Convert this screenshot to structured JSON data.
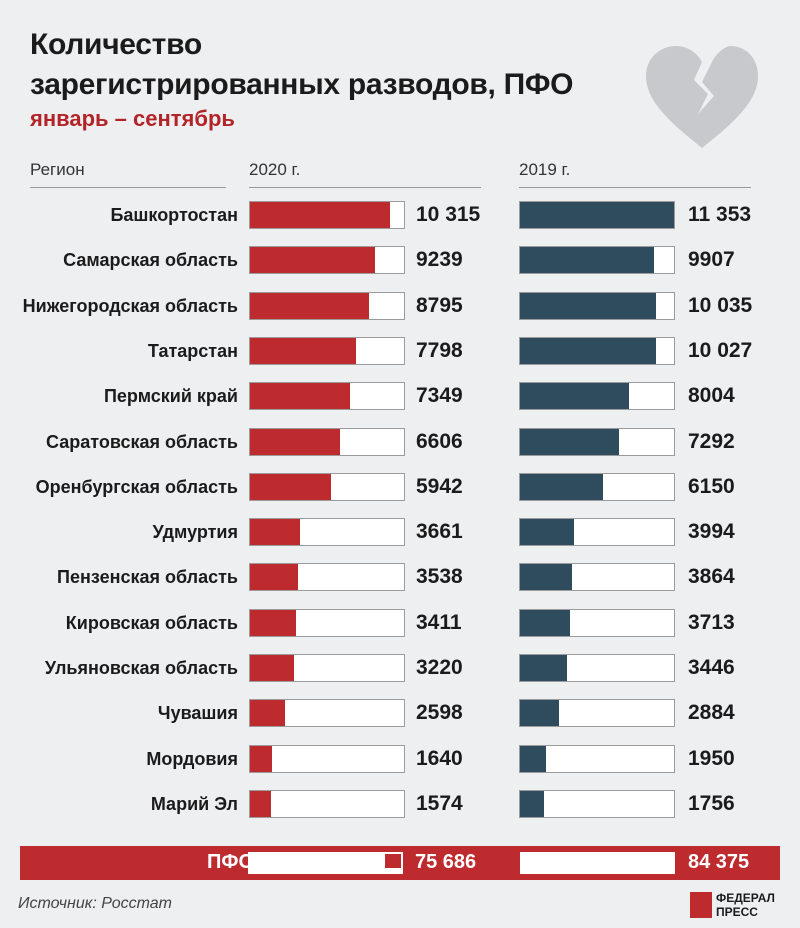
{
  "title_line1": "Количество",
  "title_line2": "зарегистрированных разводов, ПФО",
  "subtitle": "январь – сентябрь",
  "columns": {
    "region": "Регион",
    "y2020": "2020 г.",
    "y2019": "2019 г."
  },
  "colors": {
    "red": "#be2b2e",
    "dark": "#2f4c5e",
    "heart": "#c8c9cc"
  },
  "chart_data": {
    "type": "bar",
    "title": "Количество зарегистрированных разводов, ПФО",
    "subtitle": "январь – сентябрь",
    "categories": [
      "Башкортостан",
      "Самарская область",
      "Нижегородская область",
      "Татарстан",
      "Пермский край",
      "Саратовская область",
      "Оренбургская область",
      "Удмуртия",
      "Пензенская область",
      "Кировская область",
      "Ульяновская область",
      "Чувашия",
      "Мордовия",
      "Марий Эл"
    ],
    "series": [
      {
        "name": "2020 г.",
        "values": [
          10315,
          9239,
          8795,
          7798,
          7349,
          6606,
          5942,
          3661,
          3538,
          3411,
          3220,
          2598,
          1640,
          1574
        ],
        "labels": [
          "10 315",
          "9239",
          "8795",
          "7798",
          "7349",
          "6606",
          "5942",
          "3661",
          "3538",
          "3411",
          "3220",
          "2598",
          "1640",
          "1574"
        ]
      },
      {
        "name": "2019 г.",
        "values": [
          11353,
          9907,
          10035,
          10027,
          8004,
          7292,
          6150,
          3994,
          3864,
          3713,
          3446,
          2884,
          1950,
          1756
        ],
        "labels": [
          "11 353",
          "9907",
          "10 035",
          "10 027",
          "8004",
          "7292",
          "6150",
          "3994",
          "3864",
          "3713",
          "3446",
          "2884",
          "1950",
          "1756"
        ]
      }
    ],
    "totals": {
      "label": "ПФО",
      "y2020": "75 686",
      "y2019": "84 375"
    },
    "xlim": [
      0,
      11353
    ]
  },
  "source": "Источник: Росстат",
  "logo": {
    "line1": "ФЕДЕРАЛ",
    "line2": "ПРЕСС"
  }
}
